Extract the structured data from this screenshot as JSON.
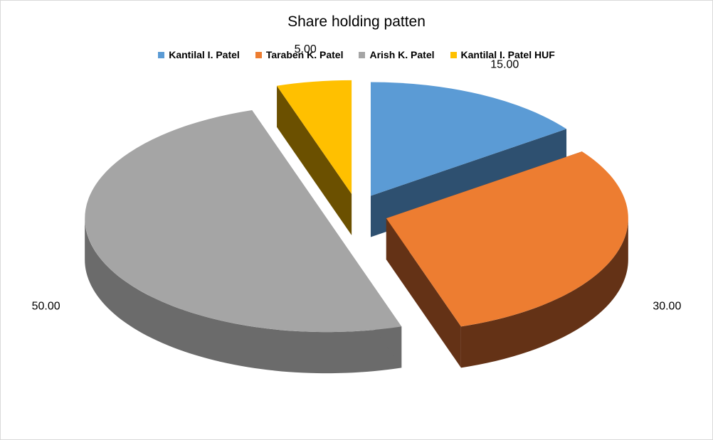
{
  "chart_data": {
    "type": "pie",
    "title": "Share holding patten",
    "legend_position": "top",
    "slices": [
      {
        "label": "Kantilal I. Patel",
        "value": 15.0,
        "display": "15.00",
        "color": "#5b9bd5",
        "side_color": "#2e5070"
      },
      {
        "label": "Taraben K. Patel",
        "value": 30.0,
        "display": "30.00",
        "color": "#ed7d31",
        "side_color": "#643216"
      },
      {
        "label": "Arish K. Patel",
        "value": 50.0,
        "display": "50.00",
        "color": "#a5a5a5",
        "side_color": "#6b6b6b"
      },
      {
        "label": "Kantilal I. Patel HUF",
        "value": 5.0,
        "display": "5.00",
        "color": "#ffc000",
        "side_color": "#6b5000"
      }
    ]
  }
}
